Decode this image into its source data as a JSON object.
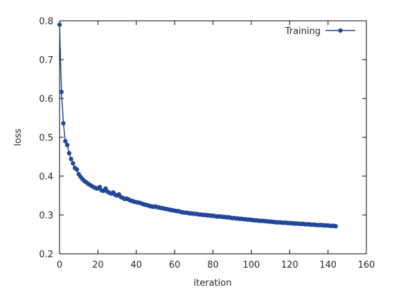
{
  "chart_data": {
    "type": "line",
    "title": "",
    "xlabel": "iteration",
    "ylabel": "loss",
    "xlim": [
      0,
      160
    ],
    "ylim": [
      0.2,
      0.8
    ],
    "xticks": [
      0,
      20,
      40,
      60,
      80,
      100,
      120,
      140,
      160
    ],
    "yticks": [
      0.2,
      0.3,
      0.4,
      0.5,
      0.6,
      0.7,
      0.8
    ],
    "grid": false,
    "legend_position": "top-right",
    "series": [
      {
        "name": "Training",
        "color": "#22479a",
        "marker": "circle",
        "x": [
          0,
          1,
          2,
          3,
          4,
          5,
          6,
          7,
          8,
          9,
          10,
          11,
          12,
          13,
          14,
          15,
          16,
          17,
          18,
          19,
          20,
          21,
          22,
          23,
          24,
          25,
          26,
          27,
          28,
          29,
          30,
          31,
          32,
          33,
          34,
          35,
          36,
          37,
          38,
          39,
          40,
          41,
          42,
          43,
          44,
          45,
          46,
          47,
          48,
          49,
          50,
          51,
          52,
          53,
          54,
          55,
          56,
          57,
          58,
          59,
          60,
          61,
          62,
          63,
          64,
          65,
          66,
          67,
          68,
          69,
          70,
          71,
          72,
          73,
          74,
          75,
          76,
          77,
          78,
          79,
          80,
          81,
          82,
          83,
          84,
          85,
          86,
          87,
          88,
          89,
          90,
          91,
          92,
          93,
          94,
          95,
          96,
          97,
          98,
          99,
          100,
          101,
          102,
          103,
          104,
          105,
          106,
          107,
          108,
          109,
          110,
          111,
          112,
          113,
          114,
          115,
          116,
          117,
          118,
          119,
          120,
          121,
          122,
          123,
          124,
          125,
          126,
          127,
          128,
          129,
          130,
          131,
          132,
          133,
          134,
          135,
          136,
          137,
          138,
          139,
          140,
          141,
          142,
          143,
          144
        ],
        "values": [
          0.79,
          0.617,
          0.536,
          0.49,
          0.48,
          0.459,
          0.444,
          0.433,
          0.421,
          0.417,
          0.405,
          0.398,
          0.392,
          0.387,
          0.384,
          0.38,
          0.377,
          0.374,
          0.371,
          0.369,
          0.368,
          0.372,
          0.363,
          0.362,
          0.368,
          0.36,
          0.357,
          0.355,
          0.358,
          0.352,
          0.35,
          0.353,
          0.346,
          0.344,
          0.341,
          0.342,
          0.34,
          0.337,
          0.336,
          0.334,
          0.333,
          0.332,
          0.331,
          0.329,
          0.327,
          0.326,
          0.325,
          0.323,
          0.322,
          0.321,
          0.322,
          0.32,
          0.319,
          0.318,
          0.317,
          0.316,
          0.315,
          0.314,
          0.313,
          0.312,
          0.311,
          0.31,
          0.31,
          0.308,
          0.307,
          0.306,
          0.306,
          0.305,
          0.304,
          0.304,
          0.303,
          0.303,
          0.302,
          0.301,
          0.301,
          0.3,
          0.3,
          0.299,
          0.299,
          0.298,
          0.298,
          0.297,
          0.296,
          0.296,
          0.296,
          0.295,
          0.295,
          0.294,
          0.294,
          0.293,
          0.292,
          0.292,
          0.291,
          0.291,
          0.29,
          0.29,
          0.289,
          0.289,
          0.288,
          0.288,
          0.287,
          0.287,
          0.286,
          0.286,
          0.285,
          0.285,
          0.285,
          0.284,
          0.284,
          0.283,
          0.283,
          0.282,
          0.282,
          0.281,
          0.281,
          0.281,
          0.28,
          0.28,
          0.28,
          0.279,
          0.279,
          0.279,
          0.278,
          0.278,
          0.278,
          0.277,
          0.277,
          0.277,
          0.276,
          0.276,
          0.276,
          0.275,
          0.275,
          0.275,
          0.274,
          0.274,
          0.274,
          0.274,
          0.273,
          0.273,
          0.273,
          0.272,
          0.272,
          0.272,
          0.271
        ]
      }
    ]
  }
}
